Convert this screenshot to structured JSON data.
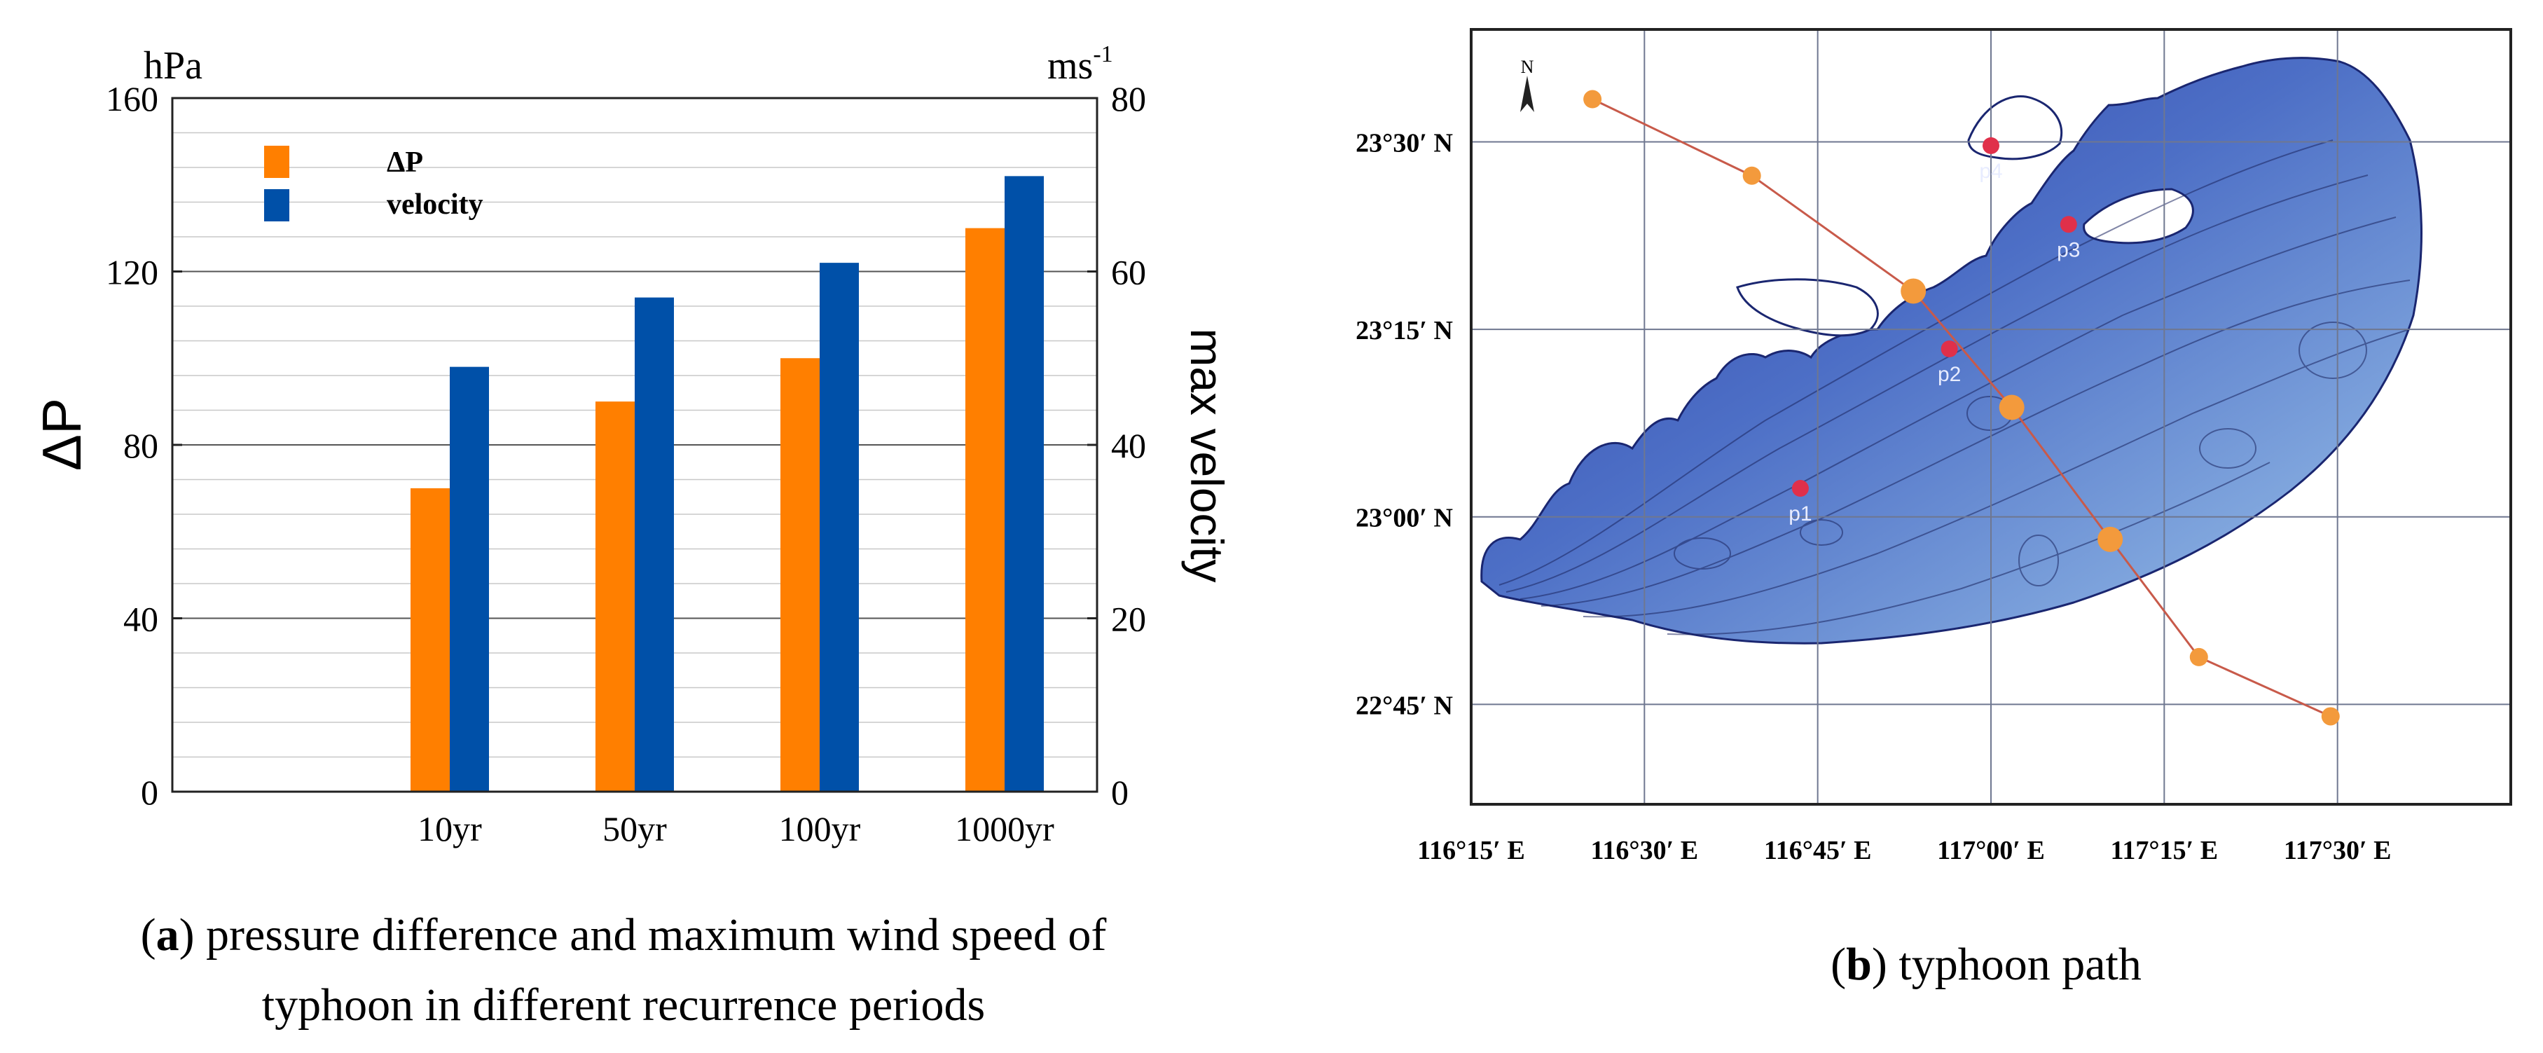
{
  "panel_a": {
    "caption_letter": "a",
    "caption_line1": "pressure difference and maximum wind speed of",
    "caption_line2": "typhoon in different recurrence periods"
  },
  "panel_b": {
    "caption_letter": "b",
    "caption_text": "typhoon path"
  },
  "chart_data": [
    {
      "type": "bar",
      "title": "",
      "categories": [
        "10yr",
        "50yr",
        "100yr",
        "1000yr"
      ],
      "series": [
        {
          "name": "ΔP",
          "axis": "left",
          "color": "#FF7F00",
          "values": [
            70,
            90,
            100,
            130
          ]
        },
        {
          "name": "velocity",
          "axis": "right",
          "color": "#0050A8",
          "values": [
            49,
            57,
            61,
            71
          ]
        }
      ],
      "left_axis": {
        "label": "ΔP",
        "unit": "hPa",
        "range": [
          0,
          160
        ],
        "ticks": [
          0,
          40,
          80,
          120,
          160
        ]
      },
      "right_axis": {
        "label": "max velocity",
        "unit": "ms",
        "unit_sup": "-1",
        "range": [
          0,
          80
        ],
        "ticks": [
          0,
          20,
          40,
          60,
          80
        ]
      },
      "grid": true,
      "legend": "top-left"
    },
    {
      "type": "scatter",
      "title": "typhoon path",
      "lon_range": [
        116.25,
        117.75
      ],
      "lat_range": [
        22.6167,
        23.65
      ],
      "x_ticks": [
        {
          "value": 116.25,
          "label": "116°15′ E"
        },
        {
          "value": 116.5,
          "label": "116°30′ E"
        },
        {
          "value": 116.75,
          "label": "116°45′ E"
        },
        {
          "value": 117.0,
          "label": "117°00′ E"
        },
        {
          "value": 117.25,
          "label": "117°15′ E"
        },
        {
          "value": 117.5,
          "label": "117°30′ E"
        }
      ],
      "y_ticks": [
        {
          "value": 22.75,
          "label": "22°45′ N"
        },
        {
          "value": 23.0,
          "label": "23°00′ N"
        },
        {
          "value": 23.25,
          "label": "23°15′ N"
        },
        {
          "value": 23.5,
          "label": "23°30′ N"
        }
      ],
      "track": [
        {
          "lon": 116.425,
          "lat": 23.557
        },
        {
          "lon": 116.655,
          "lat": 23.455
        },
        {
          "lon": 116.888,
          "lat": 23.301
        },
        {
          "lon": 117.03,
          "lat": 23.146
        },
        {
          "lon": 117.172,
          "lat": 22.97
        },
        {
          "lon": 117.3,
          "lat": 22.813
        },
        {
          "lon": 117.49,
          "lat": 22.734
        }
      ],
      "stations": [
        {
          "name": "p1",
          "lon": 116.725,
          "lat": 23.038
        },
        {
          "name": "p2",
          "lon": 116.94,
          "lat": 23.224
        },
        {
          "name": "p3",
          "lon": 117.112,
          "lat": 23.39
        },
        {
          "name": "p4",
          "lon": 117.0,
          "lat": 23.495
        }
      ],
      "north_label": "N"
    }
  ]
}
